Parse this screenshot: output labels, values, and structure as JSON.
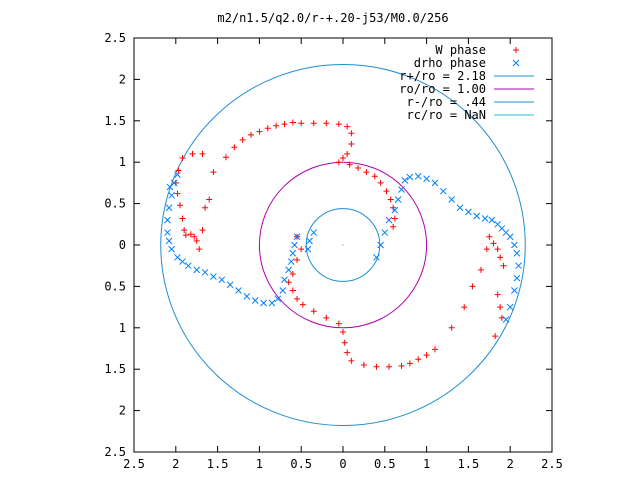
{
  "chart_data": {
    "type": "scatter",
    "title": "m2/n1.5/q2.0/r-+.20-j53/M0.0/256",
    "xlabel": "",
    "ylabel": "",
    "xlim": [
      -2.5,
      2.5
    ],
    "ylim": [
      -2.5,
      2.5
    ],
    "x_ticks": [
      -2.5,
      -2,
      -1.5,
      -1,
      -0.5,
      0,
      0.5,
      1,
      1.5,
      2,
      2.5
    ],
    "y_ticks": [
      -2.5,
      -2,
      -1.5,
      -1,
      -0.5,
      0,
      0.5,
      1,
      1.5,
      2,
      2.5
    ],
    "x_tick_labels": [
      "2.5",
      "2",
      "1.5",
      "1",
      "0.5",
      "0",
      "0.5",
      "1",
      "1.5",
      "2",
      "2.5"
    ],
    "y_tick_labels": [
      "2.5",
      "2",
      "1.5",
      "1",
      "0.5",
      "0",
      "0.5",
      "1",
      "1.5",
      "2",
      "2.5"
    ],
    "legend_position": "top-right",
    "grid": false,
    "legend": [
      {
        "label": "W phase",
        "kind": "point-plus",
        "color": "#ff0000"
      },
      {
        "label": "drho phase",
        "kind": "point-cross",
        "color": "#0080ff"
      },
      {
        "label": "r+/ro = 2.18",
        "kind": "line",
        "color": "#1f8fcf"
      },
      {
        "label": "ro/ro = 1.00",
        "kind": "line",
        "color": "#b000b0"
      },
      {
        "label": "r-/ro = .44",
        "kind": "line",
        "color": "#1f8fcf"
      },
      {
        "label": "rc/ro = NaN",
        "kind": "line",
        "color": "#20c0e0"
      }
    ],
    "circles": [
      {
        "name": "r+/ro",
        "radius": 2.18,
        "color": "#1f8fcf"
      },
      {
        "name": "ro/ro",
        "radius": 1.0,
        "color": "#b000b0"
      },
      {
        "name": "r-/ro",
        "radius": 0.44,
        "color": "#1f8fcf"
      }
    ],
    "series": [
      {
        "name": "W phase",
        "color": "#ff0000",
        "points": [
          [
            0.0,
            1.05
          ],
          [
            0.05,
            1.1
          ],
          [
            0.1,
            1.22
          ],
          [
            0.1,
            1.35
          ],
          [
            0.05,
            1.43
          ],
          [
            -0.05,
            1.46
          ],
          [
            -0.2,
            1.47
          ],
          [
            -0.35,
            1.47
          ],
          [
            -0.5,
            1.47
          ],
          [
            -0.6,
            1.48
          ],
          [
            -0.7,
            1.46
          ],
          [
            -0.8,
            1.44
          ],
          [
            -0.9,
            1.41
          ],
          [
            -1.0,
            1.37
          ],
          [
            -1.1,
            1.33
          ],
          [
            -1.2,
            1.27
          ],
          [
            -1.3,
            1.18
          ],
          [
            -1.4,
            1.06
          ],
          [
            -1.55,
            0.88
          ],
          [
            -1.68,
            1.1
          ],
          [
            -1.8,
            1.1
          ],
          [
            -1.92,
            1.05
          ],
          [
            -1.97,
            0.9
          ],
          [
            -2.0,
            0.75
          ],
          [
            -1.98,
            0.62
          ],
          [
            -1.95,
            0.48
          ],
          [
            -1.92,
            0.32
          ],
          [
            -1.9,
            0.18
          ],
          [
            -1.88,
            0.12
          ],
          [
            -1.82,
            0.13
          ],
          [
            -1.78,
            0.1
          ],
          [
            -1.75,
            0.05
          ],
          [
            -1.72,
            -0.05
          ],
          [
            -1.68,
            0.18
          ],
          [
            -1.65,
            0.45
          ],
          [
            -1.6,
            0.55
          ],
          [
            -0.05,
            1.0
          ],
          [
            0.08,
            0.97
          ],
          [
            0.18,
            0.93
          ],
          [
            0.28,
            0.88
          ],
          [
            0.38,
            0.83
          ],
          [
            0.45,
            0.75
          ],
          [
            0.52,
            0.65
          ],
          [
            0.57,
            0.55
          ],
          [
            0.6,
            0.45
          ],
          [
            0.62,
            0.32
          ],
          [
            0.6,
            0.22
          ],
          [
            -0.55,
            0.1
          ],
          [
            -0.5,
            -0.05
          ],
          [
            -0.55,
            -0.18
          ],
          [
            -0.6,
            -0.35
          ],
          [
            -0.65,
            -0.45
          ],
          [
            -0.6,
            -0.55
          ],
          [
            -0.55,
            -0.65
          ],
          [
            -0.48,
            -0.72
          ],
          [
            -0.35,
            -0.8
          ],
          [
            -0.2,
            -0.88
          ],
          [
            -0.05,
            -0.95
          ],
          [
            0.0,
            -1.05
          ],
          [
            0.02,
            -1.18
          ],
          [
            0.05,
            -1.3
          ],
          [
            0.1,
            -1.4
          ],
          [
            0.25,
            -1.45
          ],
          [
            0.4,
            -1.47
          ],
          [
            0.55,
            -1.47
          ],
          [
            0.7,
            -1.46
          ],
          [
            0.8,
            -1.43
          ],
          [
            0.9,
            -1.38
          ],
          [
            1.0,
            -1.33
          ],
          [
            1.1,
            -1.26
          ],
          [
            1.3,
            -1.0
          ],
          [
            1.45,
            -0.75
          ],
          [
            1.55,
            -0.5
          ],
          [
            1.65,
            -0.3
          ],
          [
            1.72,
            -0.05
          ],
          [
            1.75,
            0.1
          ],
          [
            1.8,
            0.02
          ],
          [
            1.85,
            -0.05
          ],
          [
            1.88,
            -0.15
          ],
          [
            1.92,
            -0.25
          ],
          [
            1.85,
            -0.6
          ],
          [
            1.88,
            -0.75
          ],
          [
            1.9,
            -0.88
          ],
          [
            1.82,
            -1.1
          ]
        ]
      },
      {
        "name": "drho phase",
        "color": "#0080ff",
        "points": [
          [
            0.4,
            -0.15
          ],
          [
            0.45,
            0.0
          ],
          [
            0.5,
            0.15
          ],
          [
            0.55,
            0.3
          ],
          [
            0.62,
            0.42
          ],
          [
            0.66,
            0.55
          ],
          [
            0.7,
            0.67
          ],
          [
            0.74,
            0.78
          ],
          [
            0.8,
            0.82
          ],
          [
            0.9,
            0.83
          ],
          [
            1.0,
            0.8
          ],
          [
            1.1,
            0.75
          ],
          [
            1.2,
            0.65
          ],
          [
            1.3,
            0.55
          ],
          [
            1.4,
            0.45
          ],
          [
            1.5,
            0.4
          ],
          [
            1.6,
            0.35
          ],
          [
            1.7,
            0.32
          ],
          [
            1.78,
            0.3
          ],
          [
            1.85,
            0.25
          ],
          [
            1.9,
            0.2
          ],
          [
            1.95,
            0.15
          ],
          [
            2.0,
            0.1
          ],
          [
            2.05,
            0.0
          ],
          [
            2.08,
            -0.1
          ],
          [
            2.1,
            -0.25
          ],
          [
            2.08,
            -0.4
          ],
          [
            2.05,
            -0.55
          ],
          [
            2.0,
            -0.75
          ],
          [
            1.95,
            -0.9
          ],
          [
            -0.55,
            0.1
          ],
          [
            -0.58,
            0.0
          ],
          [
            -0.6,
            -0.1
          ],
          [
            -0.62,
            -0.2
          ],
          [
            -0.65,
            -0.3
          ],
          [
            -0.7,
            -0.42
          ],
          [
            -0.72,
            -0.55
          ],
          [
            -0.78,
            -0.65
          ],
          [
            -0.85,
            -0.7
          ],
          [
            -0.95,
            -0.7
          ],
          [
            -1.05,
            -0.67
          ],
          [
            -1.15,
            -0.62
          ],
          [
            -1.25,
            -0.55
          ],
          [
            -1.35,
            -0.48
          ],
          [
            -1.45,
            -0.42
          ],
          [
            -1.55,
            -0.38
          ],
          [
            -1.65,
            -0.33
          ],
          [
            -1.75,
            -0.3
          ],
          [
            -1.85,
            -0.25
          ],
          [
            -1.92,
            -0.2
          ],
          [
            -1.98,
            -0.15
          ],
          [
            -2.05,
            -0.05
          ],
          [
            -2.08,
            0.05
          ],
          [
            -2.1,
            0.15
          ],
          [
            -2.1,
            0.3
          ],
          [
            -2.08,
            0.45
          ],
          [
            -2.05,
            0.6
          ],
          [
            -2.02,
            0.75
          ],
          [
            -1.98,
            0.85
          ],
          [
            -2.07,
            0.7
          ],
          [
            -0.35,
            0.15
          ],
          [
            -0.4,
            0.05
          ],
          [
            -0.42,
            -0.05
          ]
        ]
      }
    ]
  }
}
